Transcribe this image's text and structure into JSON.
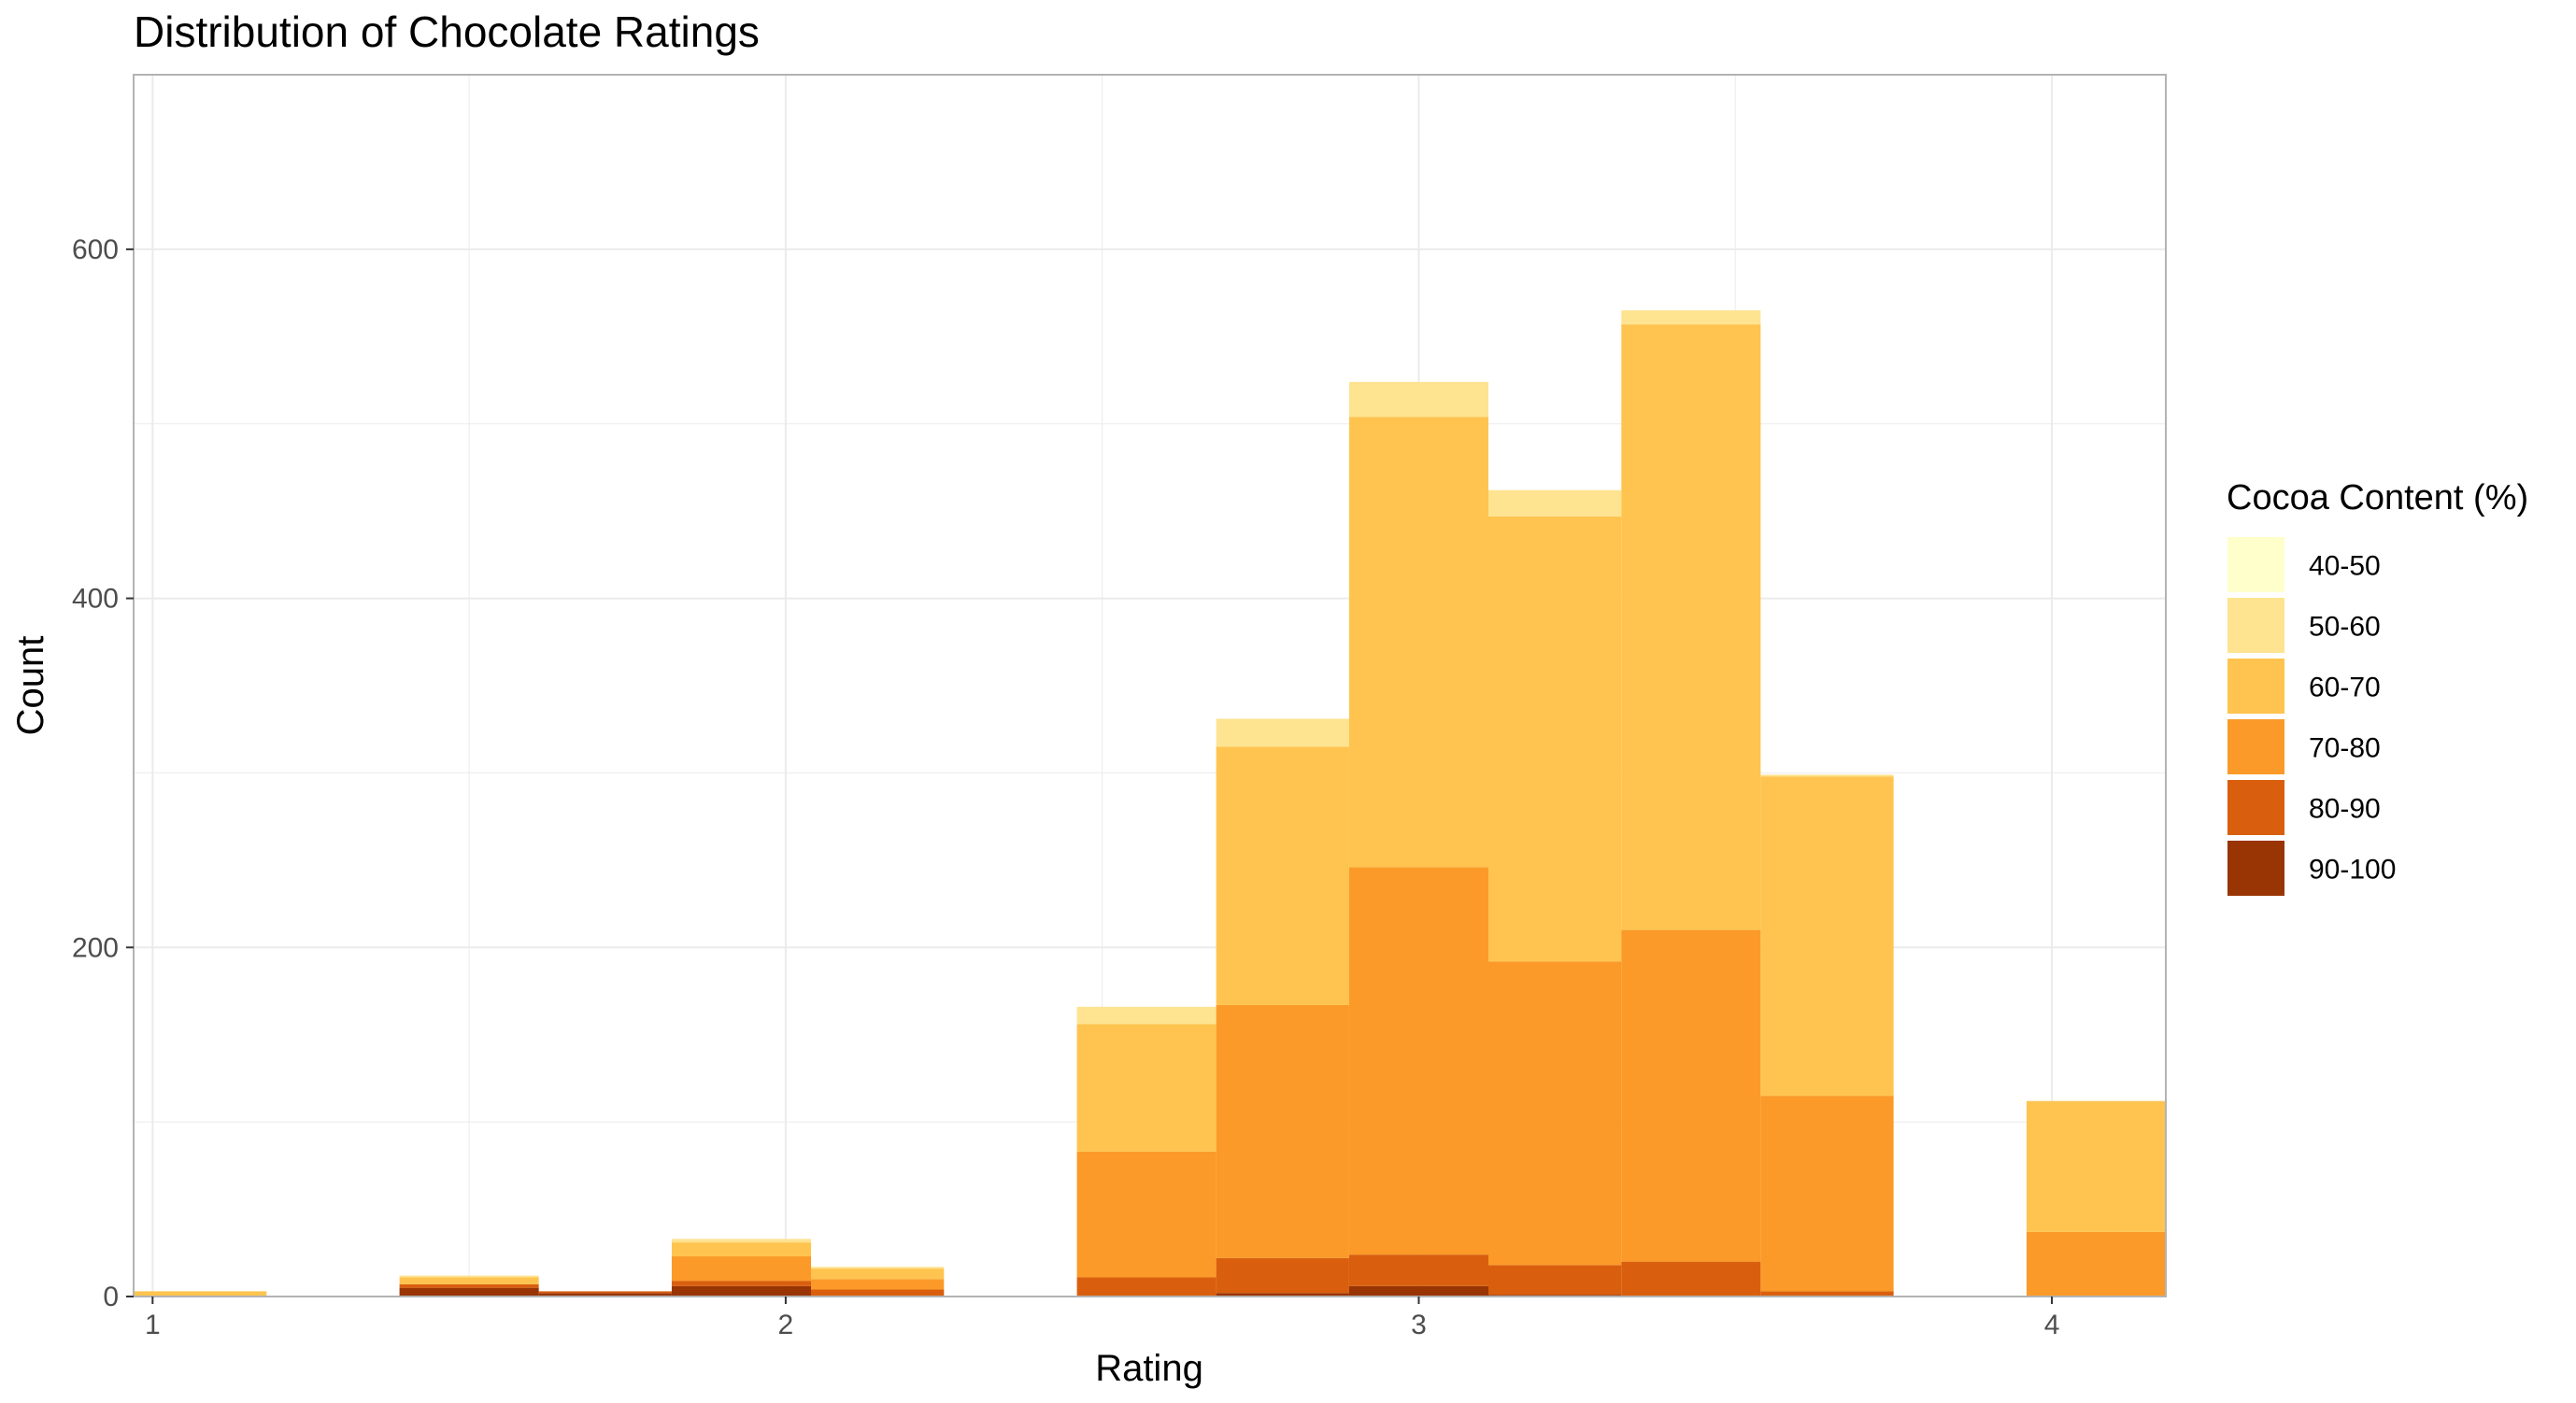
{
  "chart_data": {
    "type": "bar",
    "stacked": true,
    "title": "Distribution of Chocolate Ratings",
    "xlabel": "Rating",
    "ylabel": "Count",
    "xlim": [
      0.97,
      4.18
    ],
    "ylim": [
      0,
      700
    ],
    "x_ticks": [
      1,
      2,
      3,
      4
    ],
    "y_ticks": [
      0,
      200,
      400,
      600
    ],
    "grid": true,
    "bin_width": 0.2143,
    "bins": [
      [
        0.97,
        1.18
      ],
      [
        1.39,
        1.61
      ],
      [
        1.61,
        1.82
      ],
      [
        1.82,
        2.04
      ],
      [
        2.04,
        2.25
      ],
      [
        2.46,
        2.68
      ],
      [
        2.68,
        2.89
      ],
      [
        2.89,
        3.11
      ],
      [
        3.11,
        3.32
      ],
      [
        3.32,
        3.54
      ],
      [
        3.54,
        3.75
      ],
      [
        3.96,
        4.18
      ]
    ],
    "series": [
      {
        "name": "40-50",
        "color": "#FFFFCC",
        "values": [
          0,
          0,
          0,
          0,
          0,
          0,
          0,
          0,
          0,
          0,
          0,
          0
        ]
      },
      {
        "name": "50-60",
        "color": "#FEE391",
        "values": [
          0,
          1,
          0,
          2,
          1,
          10,
          16,
          20,
          15,
          8,
          1,
          0
        ]
      },
      {
        "name": "60-70",
        "color": "#FEC44F",
        "values": [
          3,
          4,
          0,
          8,
          6,
          73,
          148,
          258,
          255,
          347,
          183,
          75
        ]
      },
      {
        "name": "70-80",
        "color": "#FB9A29",
        "values": [
          0,
          0,
          0,
          14,
          6,
          72,
          145,
          222,
          174,
          190,
          112,
          37
        ]
      },
      {
        "name": "80-90",
        "color": "#D95F0E",
        "values": [
          0,
          2,
          1,
          3,
          4,
          11,
          20,
          18,
          17,
          20,
          3,
          0
        ]
      },
      {
        "name": "90-100",
        "color": "#993404",
        "values": [
          0,
          5,
          2,
          6,
          0,
          0,
          2,
          6,
          1,
          0,
          0,
          0
        ]
      }
    ],
    "legend": {
      "title": "Cocoa Content (%)",
      "placement": "right"
    }
  }
}
